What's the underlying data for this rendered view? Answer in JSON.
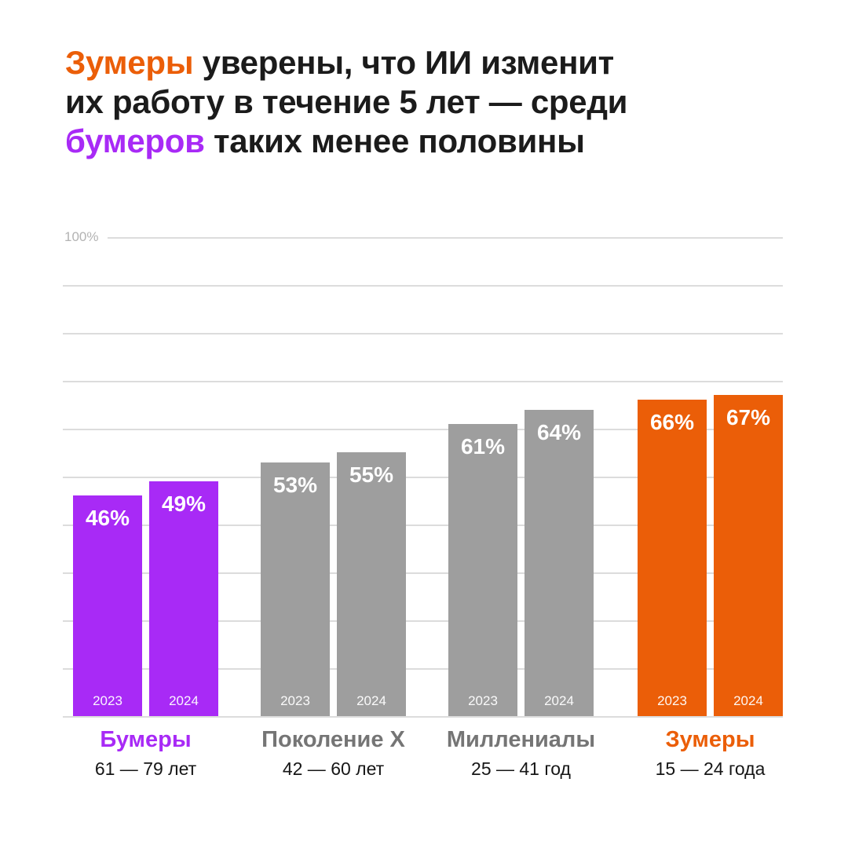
{
  "colors": {
    "orange": "#EB5E08",
    "purple": "#A82AF6",
    "gray": "#9E9E9E",
    "gray_label": "#757575",
    "grid": "#DCDCDC",
    "axis_tick": "#B3B3B3",
    "headline_text": "#1B1B1B",
    "age_text": "#161616",
    "bar_value_text": "#FFFFFF",
    "background": "#FFFFFF"
  },
  "title": {
    "full_text": "Зумеры уверены, что ИИ изменит их работу в течение 5 лет — среди бумеров таких менее половины",
    "lines": [
      [
        {
          "text": "Зумеры",
          "color": "orange"
        },
        {
          "text": " уверены, что ИИ изменит",
          "color": "headline_text"
        }
      ],
      [
        {
          "text": "их работу в течение 5 лет — среди",
          "color": "headline_text"
        }
      ],
      [
        {
          "text": "бумеров",
          "color": "purple"
        },
        {
          "text": " таких менее половины",
          "color": "headline_text"
        }
      ]
    ]
  },
  "y_axis": {
    "top_tick_label": "100%"
  },
  "chart_data": {
    "type": "bar",
    "title": "Зумеры уверены, что ИИ изменит их работу в течение 5 лет — среди бумеров таких менее половины",
    "categories": [
      "Бумеры",
      "Поколение X",
      "Миллениалы",
      "Зумеры"
    ],
    "category_sublabels": [
      "61 — 79 лет",
      "42 — 60 лет",
      "25 — 41 год",
      "15 — 24 года"
    ],
    "series": [
      {
        "name": "2023",
        "values": [
          46,
          53,
          61,
          66
        ]
      },
      {
        "name": "2024",
        "values": [
          49,
          55,
          64,
          67
        ]
      }
    ],
    "value_suffix": "%",
    "ylim": [
      0,
      100
    ],
    "grid_step": 10,
    "grid_on": true,
    "legend_position": "inside-bar-bottom",
    "bar_colors": [
      "purple",
      "gray",
      "gray",
      "orange"
    ],
    "category_label_colors": [
      "purple",
      "gray_label",
      "gray_label",
      "orange"
    ]
  }
}
